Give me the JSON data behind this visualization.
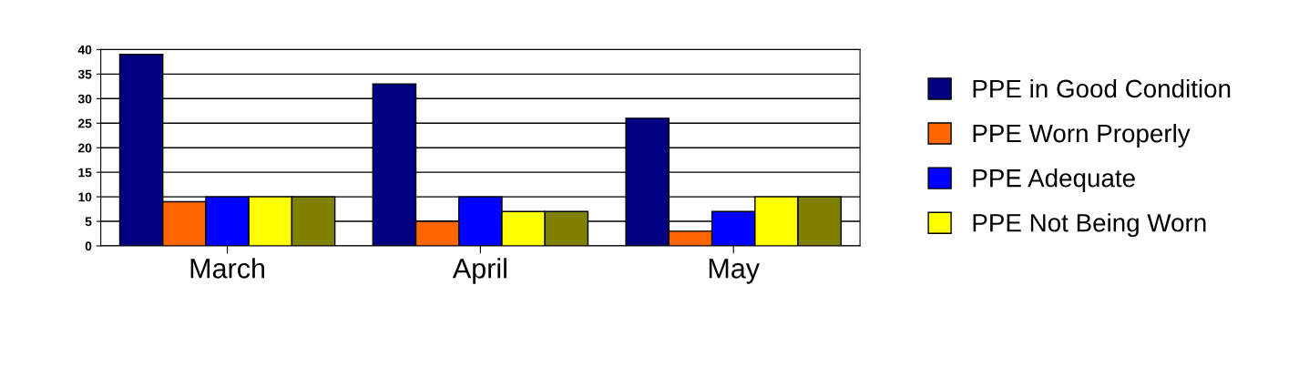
{
  "chart_data": {
    "type": "bar",
    "categories": [
      "March",
      "April",
      "May"
    ],
    "series": [
      {
        "name": "PPE in Good Condition",
        "color": "#000080",
        "values": [
          39,
          33,
          26
        ]
      },
      {
        "name": "PPE Worn Properly",
        "color": "#ff6600",
        "values": [
          9,
          5,
          3
        ]
      },
      {
        "name": "PPE Adequate",
        "color": "#0000ff",
        "values": [
          10,
          10,
          7
        ]
      },
      {
        "name": "PPE Not Being Worn",
        "color": "#ffff00",
        "values": [
          10,
          7,
          10
        ]
      },
      {
        "color": "#808000",
        "values": [
          10,
          7,
          10
        ]
      }
    ],
    "ylim": [
      0,
      40
    ],
    "yticks": [
      0,
      5,
      10,
      15,
      20,
      25,
      30,
      35,
      40
    ],
    "grid": "y",
    "legend": "right"
  }
}
